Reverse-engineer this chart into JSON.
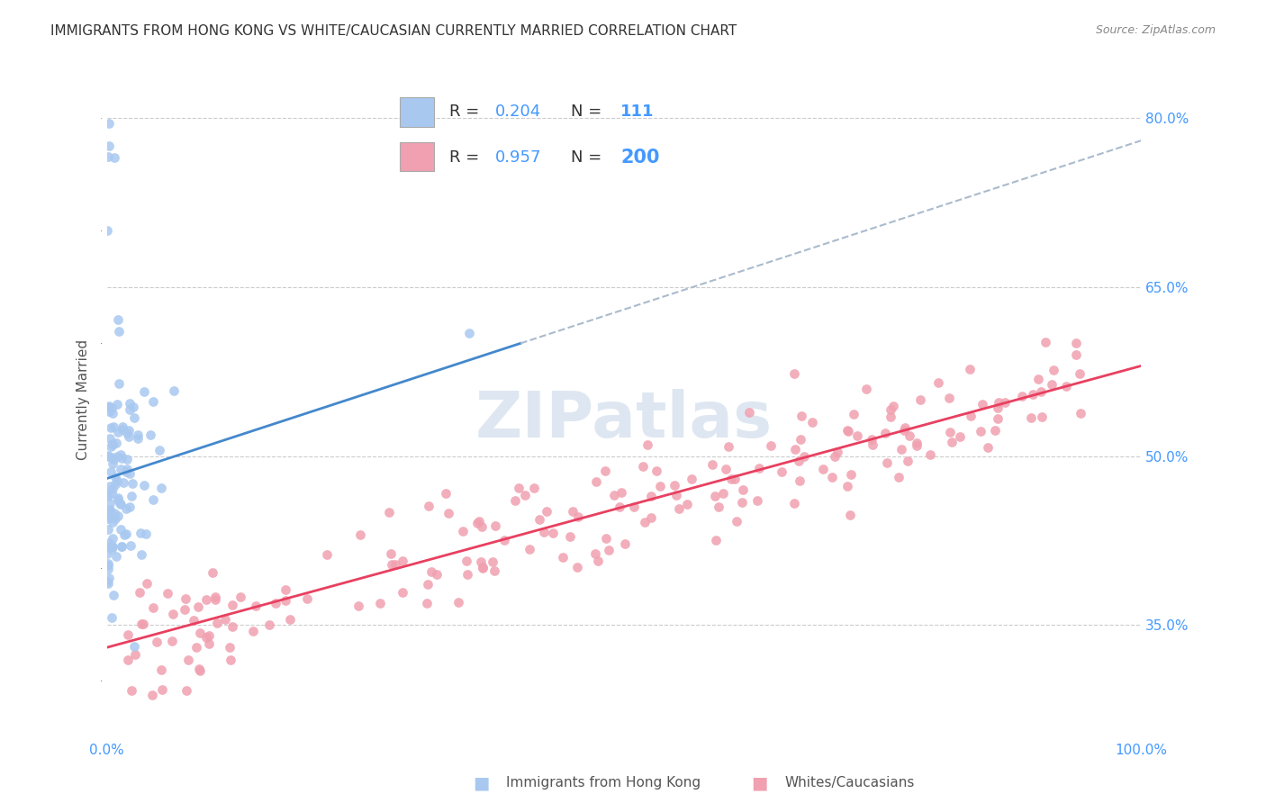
{
  "title": "IMMIGRANTS FROM HONG KONG VS WHITE/CAUCASIAN CURRENTLY MARRIED CORRELATION CHART",
  "source": "Source: ZipAtlas.com",
  "ylabel": "Currently Married",
  "ytick_labels": [
    "80.0%",
    "65.0%",
    "50.0%",
    "35.0%"
  ],
  "ytick_values": [
    0.8,
    0.65,
    0.5,
    0.35
  ],
  "legend_label1": "Immigrants from Hong Kong",
  "legend_label2": "Whites/Caucasians",
  "legend_R1": "0.204",
  "legend_N1": "111",
  "legend_R2": "0.957",
  "legend_N2": "200",
  "color_hk": "#a8c8f0",
  "color_hk_line": "#4488cc",
  "color_wc": "#f0a0b0",
  "color_wc_line": "#e84060",
  "color_dashed": "#aabbcc",
  "watermark_color": "#c8d8e8",
  "background_color": "#ffffff",
  "title_color": "#333333",
  "title_fontsize": 11,
  "source_fontsize": 9,
  "axis_label_color": "#4499ff",
  "xmin": 0.0,
  "xmax": 1.0,
  "ymin": 0.25,
  "ymax": 0.85
}
